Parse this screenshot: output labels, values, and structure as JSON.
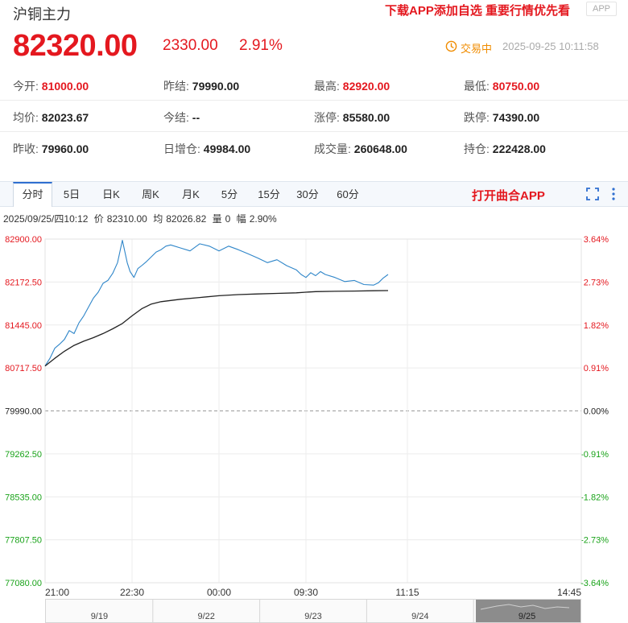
{
  "header": {
    "title": "沪铜主力",
    "promo_text": "下载APP添加自选 重要行情优先看",
    "app_badge": "APP"
  },
  "quote": {
    "price": "82320.00",
    "change": "2330.00",
    "change_pct": "2.91%",
    "status": "交易中",
    "timestamp": "2025-09-25 10:11:58"
  },
  "stats": [
    [
      {
        "label": "今开:",
        "value": "81000.00",
        "color": "red"
      },
      {
        "label": "昨结:",
        "value": "79990.00",
        "color": "black"
      },
      {
        "label": "最高:",
        "value": "82920.00",
        "color": "red"
      },
      {
        "label": "最低:",
        "value": "80750.00",
        "color": "red"
      }
    ],
    [
      {
        "label": "均价:",
        "value": "82023.67",
        "color": "black"
      },
      {
        "label": "今结:",
        "value": "--",
        "color": "black"
      },
      {
        "label": "涨停:",
        "value": "85580.00",
        "color": "black"
      },
      {
        "label": "跌停:",
        "value": "74390.00",
        "color": "black"
      }
    ],
    [
      {
        "label": "昨收:",
        "value": "79960.00",
        "color": "black"
      },
      {
        "label": "日增仓:",
        "value": "49984.00",
        "color": "black"
      },
      {
        "label": "成交量:",
        "value": "260648.00",
        "color": "black"
      },
      {
        "label": "持仓:",
        "value": "222428.00",
        "color": "black"
      }
    ]
  ],
  "tabs": [
    "分时",
    "5日",
    "日K",
    "周K",
    "月K",
    "5分",
    "15分",
    "30分",
    "60分"
  ],
  "active_tab": "分时",
  "tab_app_text": "打开曲合APP",
  "info_bar": {
    "datetime": "2025/09/25/四10:12",
    "price_label": "价",
    "price": "82310.00",
    "avg_label": "均",
    "avg": "82026.82",
    "vol_label": "量",
    "vol": "0",
    "range_label": "幅",
    "range": "2.90%"
  },
  "colors": {
    "up": "#e4181f",
    "down": "#1aa31a",
    "price_line": "#2f86c9",
    "avg_line": "#222222",
    "status": "#f08c00"
  },
  "chart_data": {
    "type": "line",
    "y_ticks_left": [
      "82900.00",
      "82172.50",
      "81445.00",
      "80717.50",
      "79990.00",
      "79262.50",
      "78535.00",
      "77807.50",
      "77080.00"
    ],
    "y_ticks_right": [
      "3.64%",
      "2.73%",
      "1.82%",
      "0.91%",
      "0.00%",
      "-0.91%",
      "-1.82%",
      "-2.73%",
      "-3.64%"
    ],
    "ylim": [
      77080,
      82900
    ],
    "baseline": 79990,
    "x_ticks": [
      "21:00",
      "22:30",
      "00:00",
      "09:30",
      "11:15",
      "14:45"
    ],
    "session_minutes": 555,
    "x_tick_minutes": [
      0,
      90,
      180,
      270,
      375,
      555
    ],
    "series": [
      {
        "role": "price",
        "x_minutes": [
          0,
          5,
          10,
          15,
          20,
          25,
          30,
          35,
          40,
          45,
          50,
          55,
          60,
          65,
          70,
          75,
          80,
          85,
          88,
          92,
          96,
          100,
          105,
          110,
          115,
          120,
          125,
          130,
          140,
          150,
          160,
          170,
          180,
          190,
          200,
          210,
          220,
          230,
          240,
          250,
          260,
          265,
          270,
          275,
          280,
          285,
          290,
          300,
          310,
          320,
          330,
          340,
          345,
          350,
          355
        ],
        "values": [
          80750,
          80880,
          81050,
          81120,
          81200,
          81350,
          81300,
          81480,
          81600,
          81750,
          81900,
          82000,
          82150,
          82200,
          82320,
          82500,
          82880,
          82500,
          82350,
          82250,
          82400,
          82450,
          82520,
          82600,
          82680,
          82720,
          82780,
          82800,
          82750,
          82700,
          82820,
          82780,
          82700,
          82780,
          82720,
          82650,
          82580,
          82500,
          82550,
          82450,
          82380,
          82300,
          82250,
          82330,
          82280,
          82350,
          82300,
          82250,
          82180,
          82200,
          82130,
          82120,
          82160,
          82240,
          82300
        ]
      },
      {
        "role": "average",
        "x_minutes": [
          0,
          10,
          20,
          30,
          40,
          50,
          60,
          70,
          80,
          90,
          100,
          110,
          120,
          140,
          160,
          180,
          200,
          220,
          240,
          260,
          270,
          280,
          300,
          320,
          340,
          355
        ],
        "values": [
          80750,
          80880,
          81000,
          81100,
          81170,
          81230,
          81300,
          81380,
          81470,
          81600,
          81720,
          81800,
          81840,
          81880,
          81910,
          81940,
          81960,
          81970,
          81980,
          81990,
          82000,
          82010,
          82015,
          82020,
          82025,
          82027
        ]
      }
    ],
    "navigator_dates": [
      "9/19",
      "9/22",
      "9/23",
      "9/24",
      "9/25"
    ]
  }
}
